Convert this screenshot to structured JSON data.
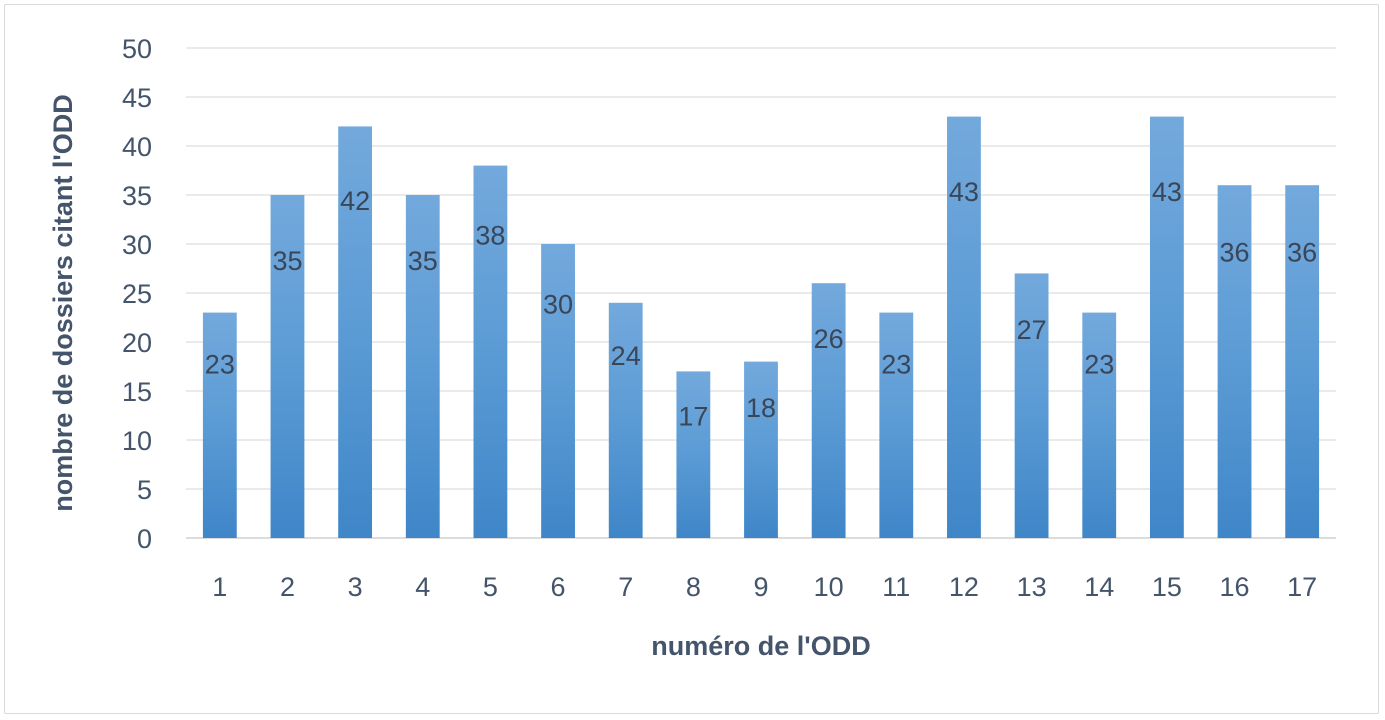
{
  "chart_data": {
    "type": "bar",
    "categories": [
      "1",
      "2",
      "3",
      "4",
      "5",
      "6",
      "7",
      "8",
      "9",
      "10",
      "11",
      "12",
      "13",
      "14",
      "15",
      "16",
      "17"
    ],
    "values": [
      23,
      35,
      42,
      35,
      38,
      30,
      24,
      17,
      18,
      26,
      23,
      43,
      27,
      23,
      43,
      36,
      36
    ],
    "title": "",
    "xlabel": "numéro de l'ODD",
    "ylabel": "nombre de dossiers citant l'ODD",
    "ylim": [
      0,
      50
    ],
    "yticks": [
      0,
      5,
      10,
      15,
      20,
      25,
      30,
      35,
      40,
      45,
      50
    ],
    "grid": true,
    "legend": "none",
    "data_labels": true,
    "bar_color": "#5b9bd5"
  }
}
